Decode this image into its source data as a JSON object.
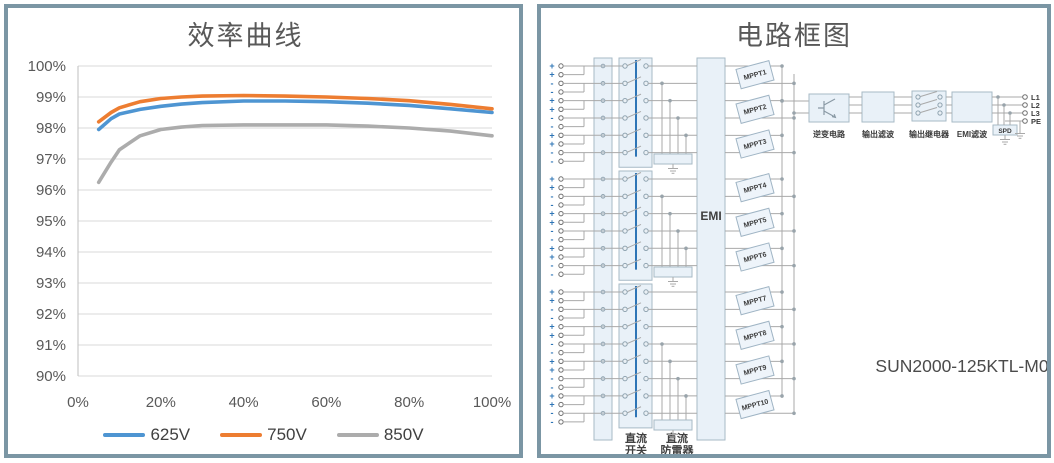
{
  "left_panel": {
    "title": "效率曲线"
  },
  "chart_data": {
    "type": "line",
    "title": "效率曲线",
    "xlabel": "",
    "ylabel": "",
    "ylim": [
      90,
      100
    ],
    "grid": true,
    "legend_position": "bottom",
    "yticks": [
      "100%",
      "99%",
      "98%",
      "97%",
      "96%",
      "95%",
      "94%",
      "93%",
      "92%",
      "91%",
      "90%"
    ],
    "xticks": [
      "0%",
      "20%",
      "40%",
      "60%",
      "80%",
      "100%"
    ],
    "x": [
      5,
      8,
      10,
      15,
      20,
      25,
      30,
      40,
      50,
      60,
      70,
      80,
      90,
      100
    ],
    "series": [
      {
        "name": "625V",
        "color": "#4E95D2",
        "values": [
          97.95,
          98.3,
          98.45,
          98.6,
          98.7,
          98.77,
          98.82,
          98.87,
          98.87,
          98.85,
          98.8,
          98.73,
          98.62,
          98.5
        ]
      },
      {
        "name": "750V",
        "color": "#ED7D31",
        "values": [
          98.2,
          98.5,
          98.65,
          98.85,
          98.95,
          99.0,
          99.03,
          99.05,
          99.03,
          99.0,
          98.95,
          98.88,
          98.76,
          98.62
        ]
      },
      {
        "name": "850V",
        "color": "#ACACAC",
        "values": [
          96.25,
          96.9,
          97.3,
          97.75,
          97.95,
          98.03,
          98.08,
          98.1,
          98.1,
          98.1,
          98.06,
          98.0,
          97.9,
          97.75
        ]
      }
    ]
  },
  "right_panel": {
    "title": "电路框图",
    "model": "SUN2000-125KTL-M0",
    "labels": {
      "emi": "EMI",
      "inverter": "逆变电路",
      "output_filter": "输出滤波",
      "output_relay": "输出继电器",
      "emi_filter": "EMI滤波",
      "spd": "SPD",
      "dc_switch": [
        "直流",
        "开关"
      ],
      "dc_spd": [
        "直流",
        "防雷器"
      ],
      "outputs": [
        "L1",
        "L2",
        "L3",
        "PE"
      ]
    },
    "polarity_pattern": [
      "+",
      "+",
      "-",
      "-"
    ],
    "mppts": [
      "MPPT1",
      "MPPT2",
      "MPPT3",
      "MPPT4",
      "MPPT5",
      "MPPT6",
      "MPPT7",
      "MPPT8",
      "MPPT9",
      "MPPT10"
    ],
    "groups": [
      {
        "inputs": 12,
        "switches": 6
      },
      {
        "inputs": 12,
        "switches": 6
      },
      {
        "inputs": 16,
        "switches": 8
      }
    ]
  }
}
